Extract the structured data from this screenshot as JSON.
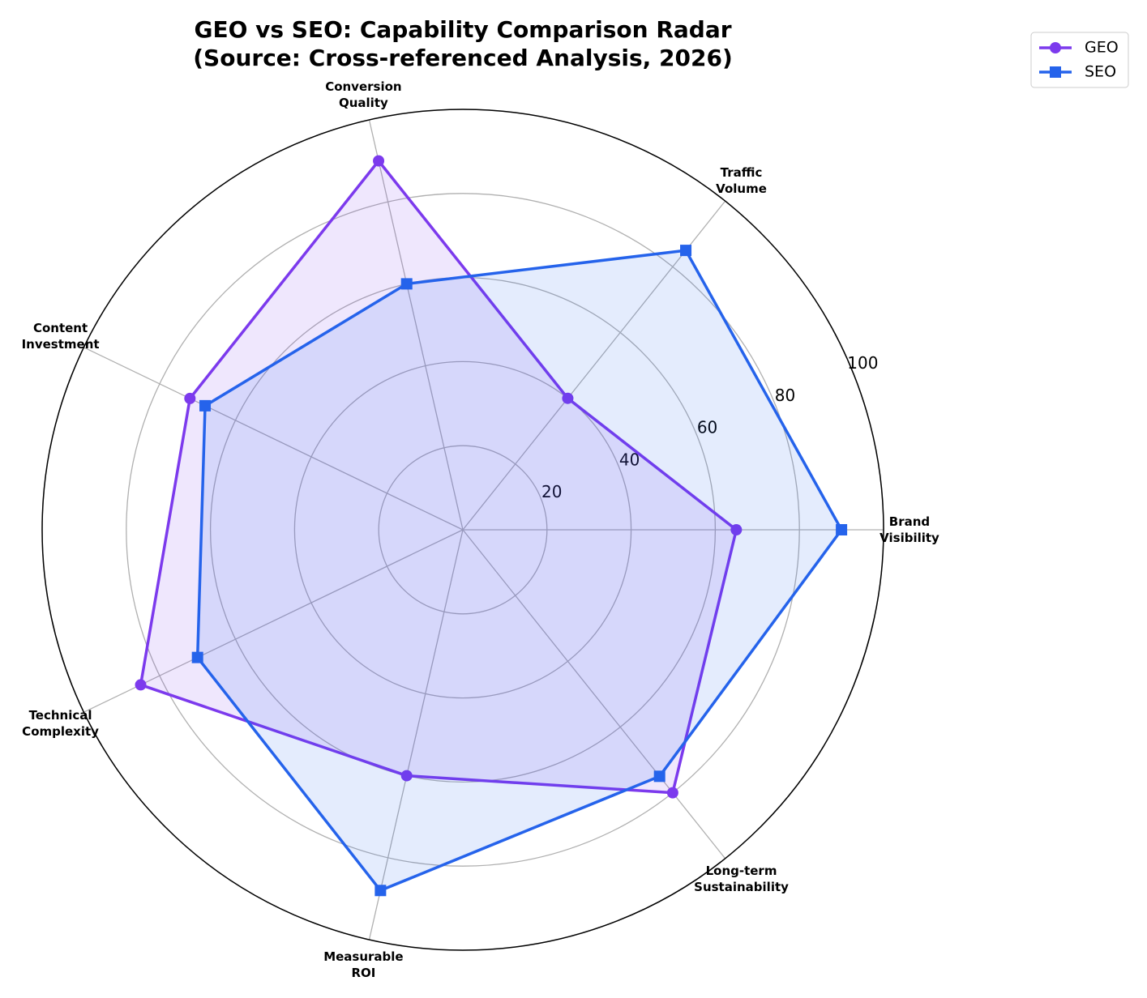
{
  "chart_data": {
    "type": "radar",
    "title": "GEO vs SEO: Capability Comparison Radar",
    "subtitle": "(Source: Cross-referenced Analysis, 2026)",
    "categories": [
      "Brand\nVisibility",
      "Traffic\nVolume",
      "Conversion\nQuality",
      "Content\nInvestment",
      "Technical\nComplexity",
      "Measurable\nROI",
      "Long-term\nSustainability"
    ],
    "series": [
      {
        "name": "GEO",
        "color": "#7c3aed",
        "marker": "circle",
        "values": [
          65,
          40,
          90,
          72,
          85,
          60,
          80
        ]
      },
      {
        "name": "SEO",
        "color": "#2563eb",
        "marker": "square",
        "values": [
          90,
          85,
          60,
          68,
          70,
          88,
          75
        ]
      }
    ],
    "rlim": [
      0,
      100
    ],
    "rticks": [
      20,
      40,
      60,
      80,
      100
    ],
    "grid": true,
    "legend": "upper right"
  }
}
